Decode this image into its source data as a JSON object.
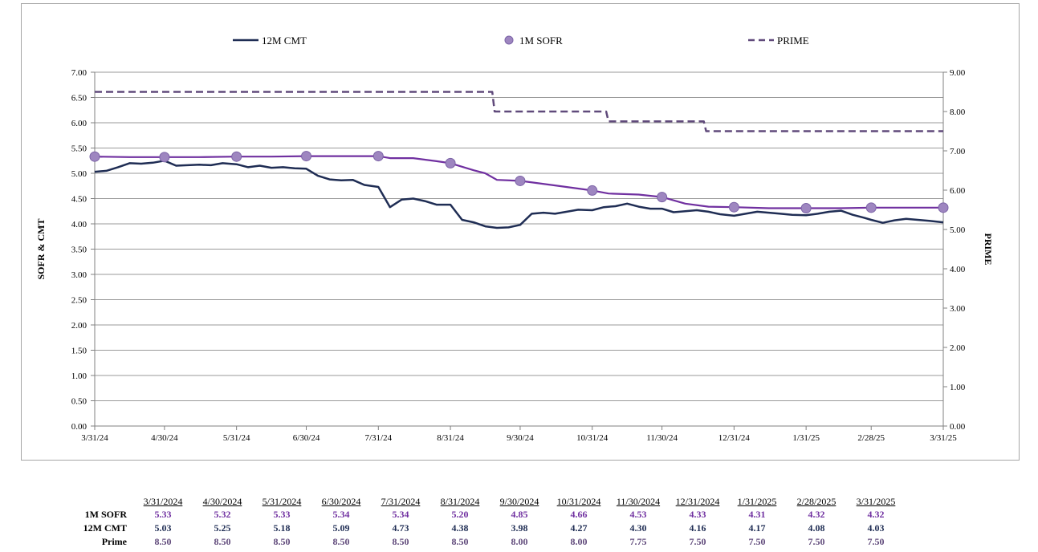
{
  "chart_data": {
    "type": "line",
    "left_axis": {
      "label": "SOFR & CMT",
      "ticks": [
        "0.00",
        "0.50",
        "1.00",
        "1.50",
        "2.00",
        "2.50",
        "3.00",
        "3.50",
        "4.00",
        "4.50",
        "5.00",
        "5.50",
        "6.00",
        "6.50",
        "7.00"
      ],
      "range": [
        0,
        7
      ]
    },
    "right_axis": {
      "label": "PRIME",
      "ticks": [
        "0.00",
        "1.00",
        "2.00",
        "3.00",
        "4.00",
        "5.00",
        "6.00",
        "7.00",
        "8.00",
        "9.00"
      ],
      "range": [
        0,
        9
      ]
    },
    "x_ticks": [
      "3/31/24",
      "4/30/24",
      "5/31/24",
      "6/30/24",
      "7/31/24",
      "8/31/24",
      "9/30/24",
      "10/31/24",
      "11/30/24",
      "12/31/24",
      "1/31/25",
      "2/28/25",
      "3/31/25"
    ],
    "x_range": [
      "2024-03-31",
      "2025-03-31"
    ],
    "grid": true,
    "legend_position": "top",
    "series": [
      {
        "name": "12M CMT",
        "axis": "left",
        "style": "solid",
        "color": "#1f2d54",
        "points": [
          [
            "2024-03-31",
            5.03
          ],
          [
            "2024-04-05",
            5.05
          ],
          [
            "2024-04-10",
            5.12
          ],
          [
            "2024-04-15",
            5.2
          ],
          [
            "2024-04-20",
            5.19
          ],
          [
            "2024-04-25",
            5.21
          ],
          [
            "2024-04-30",
            5.25
          ],
          [
            "2024-05-05",
            5.15
          ],
          [
            "2024-05-10",
            5.16
          ],
          [
            "2024-05-15",
            5.17
          ],
          [
            "2024-05-20",
            5.16
          ],
          [
            "2024-05-25",
            5.2
          ],
          [
            "2024-05-31",
            5.18
          ],
          [
            "2024-06-05",
            5.12
          ],
          [
            "2024-06-10",
            5.15
          ],
          [
            "2024-06-15",
            5.11
          ],
          [
            "2024-06-20",
            5.12
          ],
          [
            "2024-06-25",
            5.1
          ],
          [
            "2024-06-30",
            5.09
          ],
          [
            "2024-07-05",
            4.95
          ],
          [
            "2024-07-10",
            4.88
          ],
          [
            "2024-07-15",
            4.86
          ],
          [
            "2024-07-20",
            4.87
          ],
          [
            "2024-07-25",
            4.77
          ],
          [
            "2024-07-31",
            4.73
          ],
          [
            "2024-08-05",
            4.33
          ],
          [
            "2024-08-10",
            4.48
          ],
          [
            "2024-08-15",
            4.5
          ],
          [
            "2024-08-20",
            4.45
          ],
          [
            "2024-08-25",
            4.38
          ],
          [
            "2024-08-31",
            4.38
          ],
          [
            "2024-09-05",
            4.08
          ],
          [
            "2024-09-10",
            4.03
          ],
          [
            "2024-09-15",
            3.95
          ],
          [
            "2024-09-20",
            3.92
          ],
          [
            "2024-09-25",
            3.93
          ],
          [
            "2024-09-30",
            3.98
          ],
          [
            "2024-10-05",
            4.2
          ],
          [
            "2024-10-10",
            4.22
          ],
          [
            "2024-10-15",
            4.2
          ],
          [
            "2024-10-20",
            4.24
          ],
          [
            "2024-10-25",
            4.28
          ],
          [
            "2024-10-31",
            4.27
          ],
          [
            "2024-11-05",
            4.33
          ],
          [
            "2024-11-10",
            4.35
          ],
          [
            "2024-11-15",
            4.4
          ],
          [
            "2024-11-20",
            4.34
          ],
          [
            "2024-11-25",
            4.3
          ],
          [
            "2024-11-30",
            4.3
          ],
          [
            "2024-12-05",
            4.23
          ],
          [
            "2024-12-10",
            4.25
          ],
          [
            "2024-12-15",
            4.27
          ],
          [
            "2024-12-20",
            4.24
          ],
          [
            "2024-12-25",
            4.19
          ],
          [
            "2024-12-31",
            4.16
          ],
          [
            "2025-01-05",
            4.2
          ],
          [
            "2025-01-10",
            4.24
          ],
          [
            "2025-01-15",
            4.22
          ],
          [
            "2025-01-20",
            4.2
          ],
          [
            "2025-01-25",
            4.18
          ],
          [
            "2025-01-31",
            4.17
          ],
          [
            "2025-02-05",
            4.2
          ],
          [
            "2025-02-10",
            4.24
          ],
          [
            "2025-02-15",
            4.26
          ],
          [
            "2025-02-20",
            4.18
          ],
          [
            "2025-02-25",
            4.12
          ],
          [
            "2025-02-28",
            4.08
          ],
          [
            "2025-03-05",
            4.02
          ],
          [
            "2025-03-10",
            4.07
          ],
          [
            "2025-03-15",
            4.1
          ],
          [
            "2025-03-20",
            4.08
          ],
          [
            "2025-03-25",
            4.06
          ],
          [
            "2025-03-31",
            4.03
          ]
        ]
      },
      {
        "name": "1M SOFR",
        "axis": "left",
        "style": "line-with-markers",
        "color": "#7030a0",
        "marker_color": "#9e86c0",
        "points": [
          [
            "2024-03-31",
            5.33
          ],
          [
            "2024-04-15",
            5.32
          ],
          [
            "2024-04-30",
            5.32
          ],
          [
            "2024-05-15",
            5.32
          ],
          [
            "2024-05-31",
            5.33
          ],
          [
            "2024-06-15",
            5.33
          ],
          [
            "2024-06-30",
            5.34
          ],
          [
            "2024-07-15",
            5.34
          ],
          [
            "2024-07-31",
            5.34
          ],
          [
            "2024-08-05",
            5.3
          ],
          [
            "2024-08-15",
            5.3
          ],
          [
            "2024-08-25",
            5.24
          ],
          [
            "2024-08-31",
            5.2
          ],
          [
            "2024-09-10",
            5.06
          ],
          [
            "2024-09-15",
            5.0
          ],
          [
            "2024-09-20",
            4.87
          ],
          [
            "2024-09-30",
            4.85
          ],
          [
            "2024-10-15",
            4.76
          ],
          [
            "2024-10-31",
            4.66
          ],
          [
            "2024-11-07",
            4.6
          ],
          [
            "2024-11-20",
            4.58
          ],
          [
            "2024-11-30",
            4.53
          ],
          [
            "2024-12-10",
            4.4
          ],
          [
            "2024-12-20",
            4.34
          ],
          [
            "2024-12-31",
            4.33
          ],
          [
            "2025-01-15",
            4.31
          ],
          [
            "2025-01-31",
            4.31
          ],
          [
            "2025-02-15",
            4.31
          ],
          [
            "2025-02-28",
            4.32
          ],
          [
            "2025-03-15",
            4.32
          ],
          [
            "2025-03-31",
            4.32
          ]
        ],
        "markers": [
          [
            "2024-03-31",
            5.33
          ],
          [
            "2024-04-30",
            5.32
          ],
          [
            "2024-05-31",
            5.33
          ],
          [
            "2024-06-30",
            5.34
          ],
          [
            "2024-07-31",
            5.34
          ],
          [
            "2024-08-31",
            5.2
          ],
          [
            "2024-09-30",
            4.85
          ],
          [
            "2024-10-31",
            4.66
          ],
          [
            "2024-11-30",
            4.53
          ],
          [
            "2024-12-31",
            4.33
          ],
          [
            "2025-01-31",
            4.31
          ],
          [
            "2025-02-28",
            4.32
          ],
          [
            "2025-03-31",
            4.32
          ]
        ]
      },
      {
        "name": "PRIME",
        "axis": "right",
        "style": "dashed",
        "color": "#604a7b",
        "points": [
          [
            "2024-03-31",
            8.5
          ],
          [
            "2024-09-18",
            8.5
          ],
          [
            "2024-09-19",
            8.0
          ],
          [
            "2024-11-06",
            8.0
          ],
          [
            "2024-11-07",
            7.75
          ],
          [
            "2024-12-18",
            7.75
          ],
          [
            "2024-12-19",
            7.5
          ],
          [
            "2025-03-31",
            7.5
          ]
        ]
      }
    ]
  },
  "table": {
    "dates": [
      "3/31/2024",
      "4/30/2024",
      "5/31/2024",
      "6/30/2024",
      "7/31/2024",
      "8/31/2024",
      "9/30/2024",
      "10/31/2024",
      "11/30/2024",
      "12/31/2024",
      "1/31/2025",
      "2/28/2025",
      "3/31/2025"
    ],
    "rows": [
      {
        "label": "1M SOFR",
        "values": [
          "5.33",
          "5.32",
          "5.33",
          "5.34",
          "5.34",
          "5.20",
          "4.85",
          "4.66",
          "4.53",
          "4.33",
          "4.31",
          "4.32",
          "4.32"
        ]
      },
      {
        "label": "12M CMT",
        "values": [
          "5.03",
          "5.25",
          "5.18",
          "5.09",
          "4.73",
          "4.38",
          "3.98",
          "4.27",
          "4.30",
          "4.16",
          "4.17",
          "4.08",
          "4.03"
        ]
      },
      {
        "label": "Prime",
        "values": [
          "8.50",
          "8.50",
          "8.50",
          "8.50",
          "8.50",
          "8.50",
          "8.00",
          "8.00",
          "7.75",
          "7.50",
          "7.50",
          "7.50",
          "7.50"
        ]
      }
    ]
  }
}
